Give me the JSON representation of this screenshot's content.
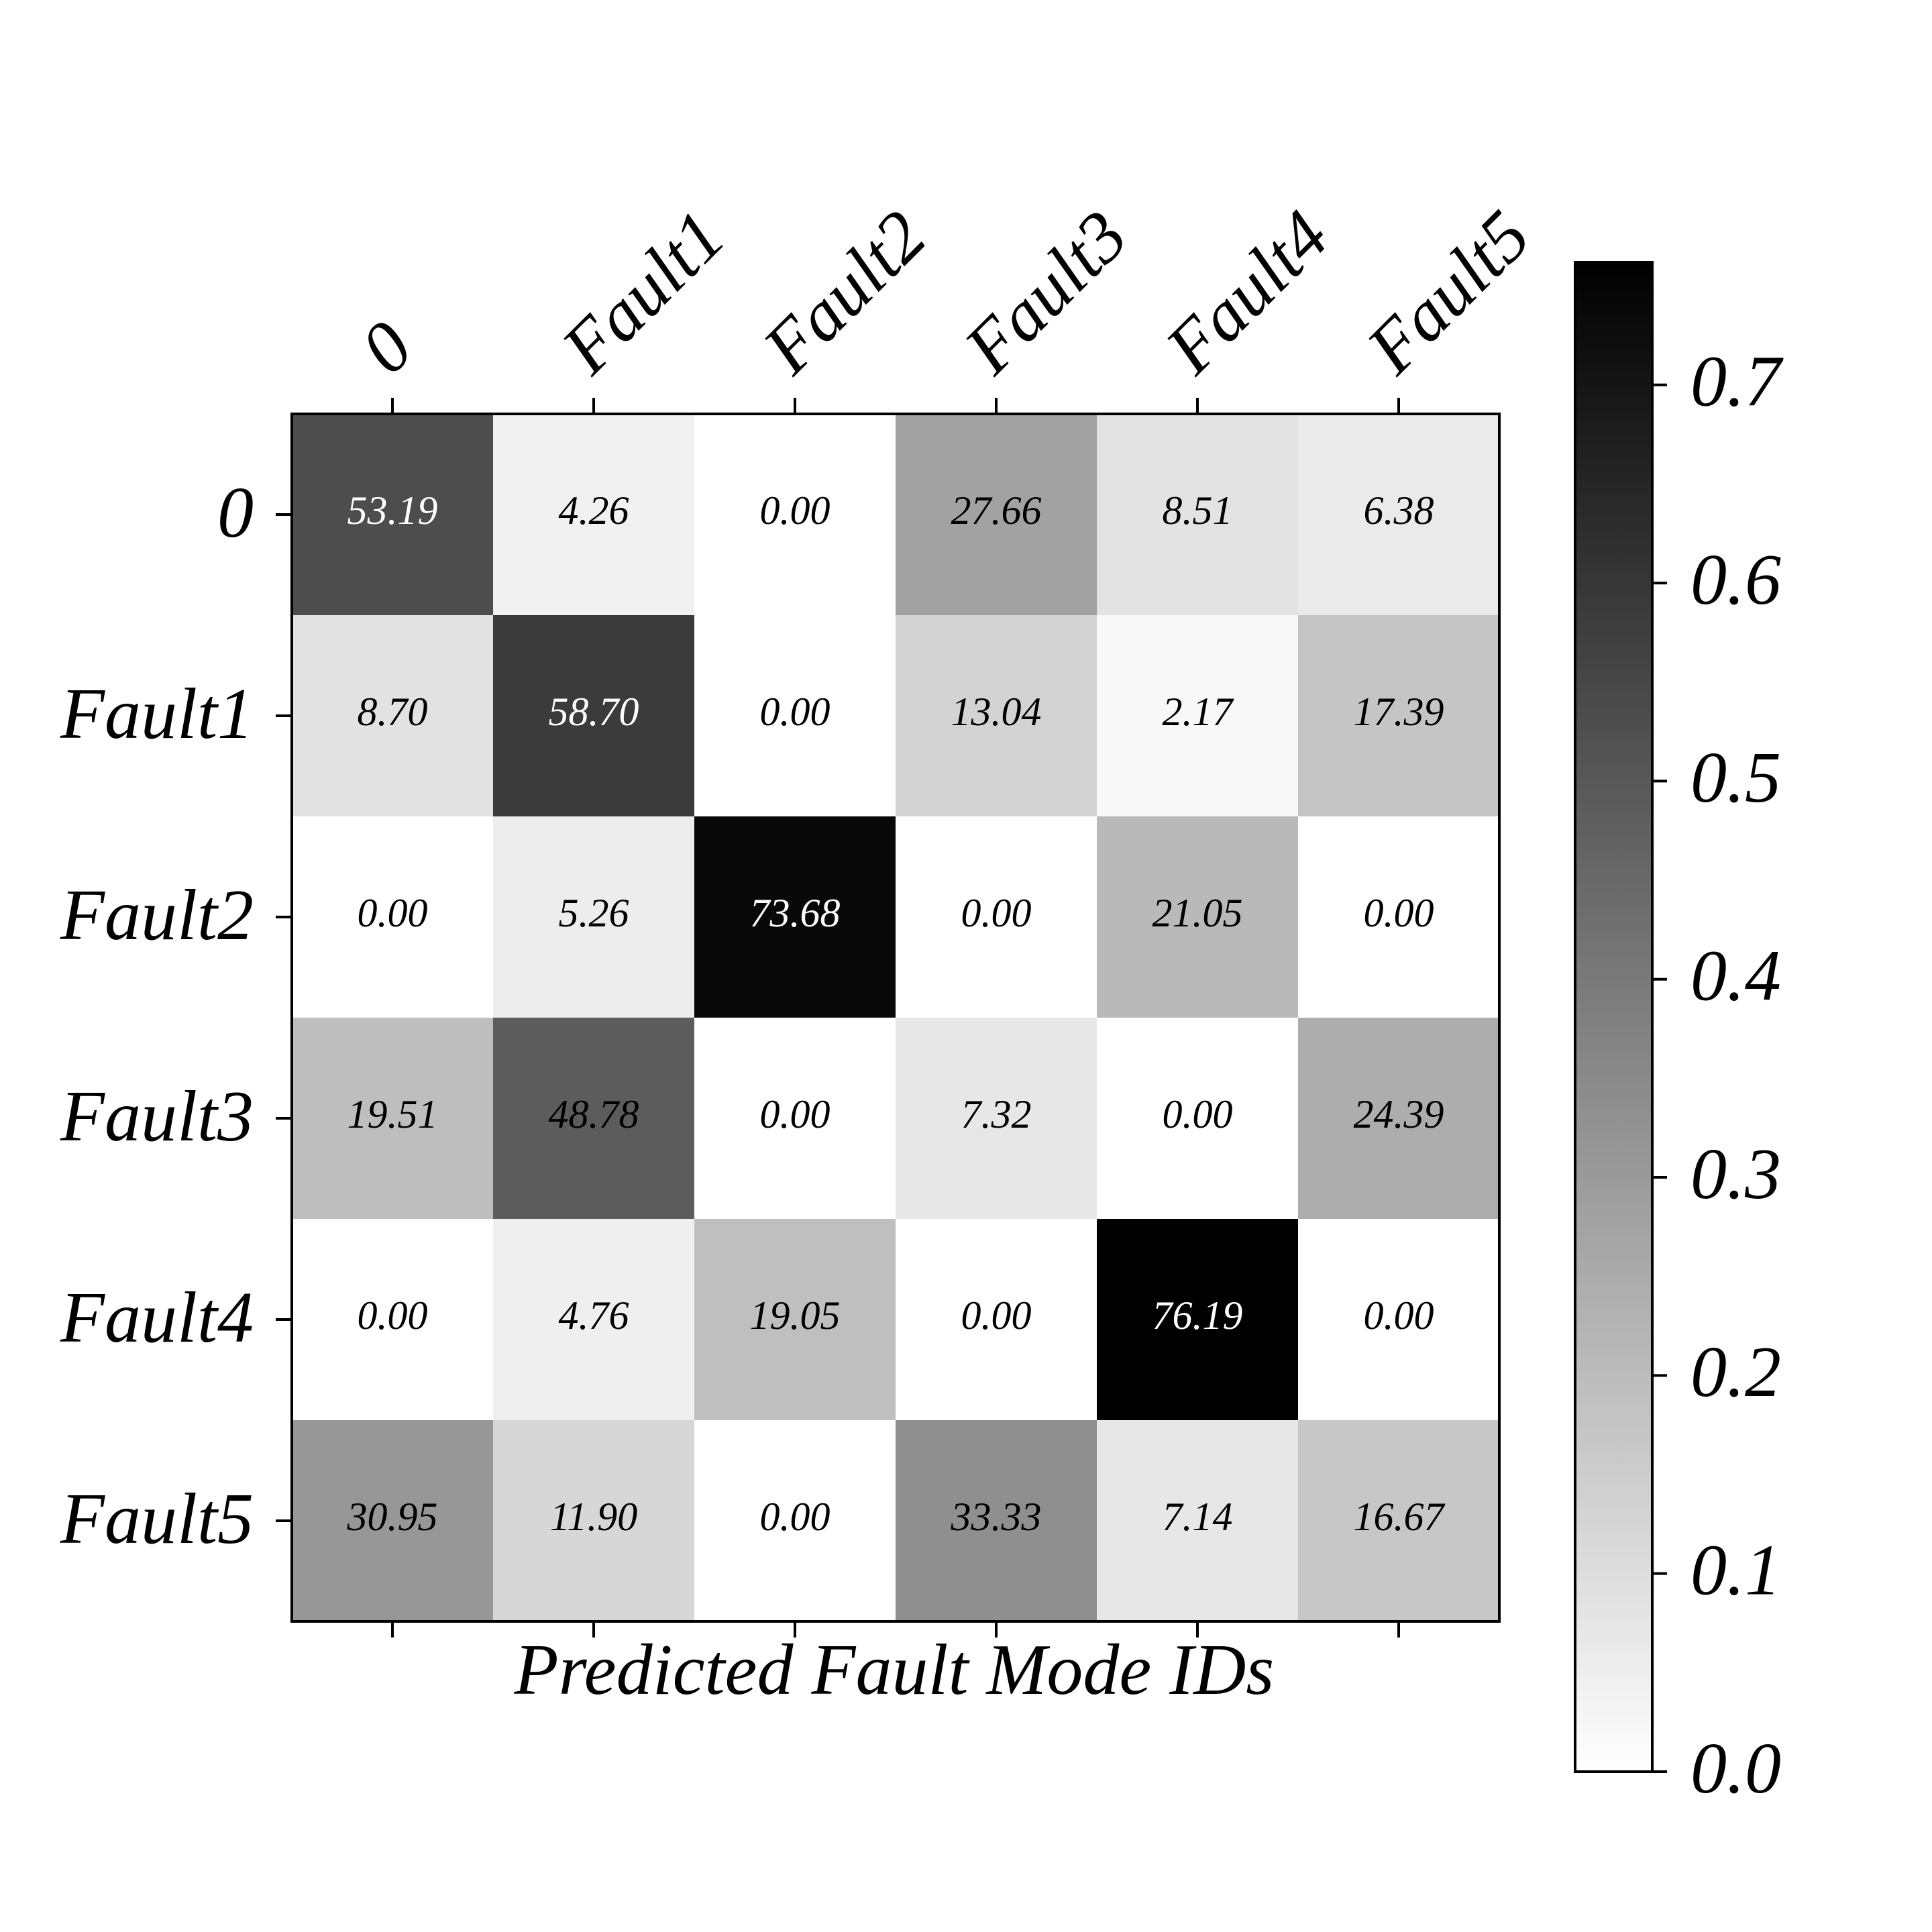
{
  "chart_data": {
    "type": "heatmap",
    "x_categories": [
      "0",
      "Fault1",
      "Fault2",
      "Fault3",
      "Fault4",
      "Fault5"
    ],
    "y_categories": [
      "0",
      "Fault1",
      "Fault2",
      "Fault3",
      "Fault4",
      "Fault5"
    ],
    "xlabel": "Predicted Fault Mode IDs",
    "values": [
      [
        0.5319,
        0.0426,
        0,
        0.2766,
        0.0851,
        0.0638
      ],
      [
        0.087,
        0.587,
        0,
        0.1304,
        0.0217,
        0.1739
      ],
      [
        0,
        0.0526,
        0.7368,
        0,
        0.2105,
        0
      ],
      [
        0.1951,
        0.4878,
        0,
        0.0732,
        0,
        0.2439
      ],
      [
        0,
        0.0476,
        0.1905,
        0,
        0.7619,
        0
      ],
      [
        0.3095,
        0.119,
        0,
        0.3333,
        0.0714,
        0.1667
      ]
    ],
    "value_labels": [
      [
        "53.19",
        "4.26",
        "0.00",
        "27.66",
        "8.51",
        "6.38"
      ],
      [
        "8.70",
        "58.70",
        "0.00",
        "13.04",
        "2.17",
        "17.39"
      ],
      [
        "0.00",
        "5.26",
        "73.68",
        "0.00",
        "21.05",
        "0.00"
      ],
      [
        "19.51",
        "48.78",
        "0.00",
        "7.32",
        "0.00",
        "24.39"
      ],
      [
        "0.00",
        "4.76",
        "19.05",
        "0.00",
        "76.19",
        "0.00"
      ],
      [
        "30.95",
        "11.90",
        "0.00",
        "33.33",
        "7.14",
        "16.67"
      ]
    ],
    "colormap": "gray_r",
    "clim": [
      0,
      0.7619
    ],
    "cticks": [
      {
        "value": 0,
        "label": "0.0"
      },
      0.1,
      0.2,
      0.3,
      0.4,
      0.5,
      0.6,
      0.7
    ]
  }
}
